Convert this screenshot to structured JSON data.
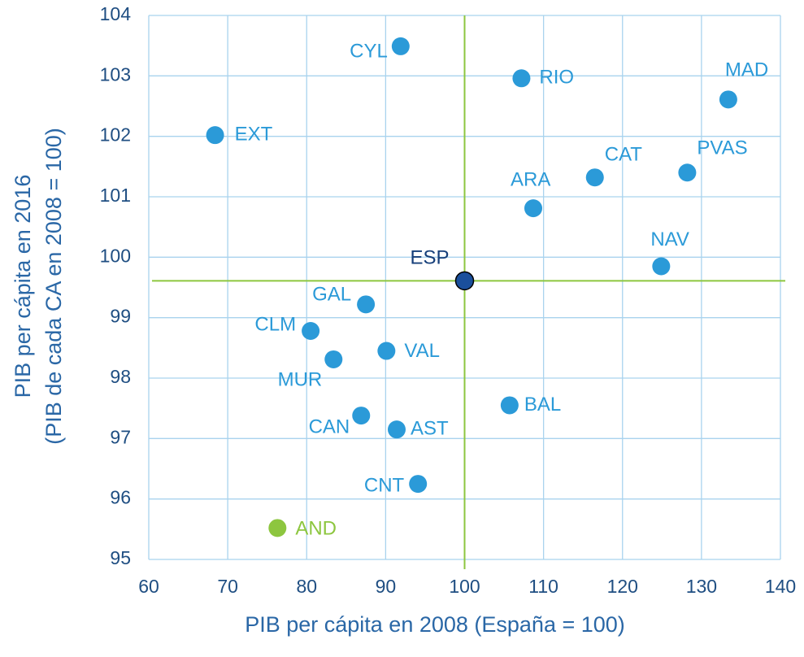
{
  "chart_data": {
    "type": "scatter",
    "xlabel": "PIB per cápita en 2008 (España = 100)",
    "ylabel": [
      "PIB per cápita en 2016",
      "(PIB de cada CA en 2008 = 100)"
    ],
    "labels": [
      "CYL",
      "RIO",
      "MAD",
      "EXT",
      "CAT",
      "PVAS",
      "ARA",
      "NAV",
      "ESP",
      "GAL",
      "CLM",
      "VAL",
      "MUR",
      "BAL",
      "CAN",
      "AST",
      "CNT",
      "AND"
    ],
    "x": [
      91.9,
      107.2,
      133.4,
      68.4,
      116.5,
      128.2,
      108.7,
      124.9,
      100,
      87.5,
      80.5,
      90.1,
      83.4,
      105.7,
      86.9,
      91.4,
      94.1,
      76.3
    ],
    "y": [
      103.49,
      102.96,
      102.61,
      102.02,
      101.32,
      101.4,
      100.81,
      99.85,
      99.61,
      99.22,
      98.78,
      98.45,
      98.31,
      97.55,
      97.38,
      97.15,
      96.25,
      95.52
    ],
    "colors": [
      "#2b9ad8",
      "#2b9ad8",
      "#2b9ad8",
      "#2b9ad8",
      "#2b9ad8",
      "#2b9ad8",
      "#2b9ad8",
      "#2b9ad8",
      "#1a4f9c",
      "#2b9ad8",
      "#2b9ad8",
      "#2b9ad8",
      "#2b9ad8",
      "#2b9ad8",
      "#2b9ad8",
      "#2b9ad8",
      "#2b9ad8",
      "#8dc63f"
    ],
    "xlim": [
      60,
      140
    ],
    "xticks": [
      60,
      70,
      80,
      90,
      100,
      110,
      120,
      130,
      140
    ],
    "ylim": [
      95,
      104
    ],
    "yticks": [
      95,
      96,
      97,
      98,
      99,
      100,
      101,
      102,
      103,
      104
    ],
    "grid": true
  }
}
